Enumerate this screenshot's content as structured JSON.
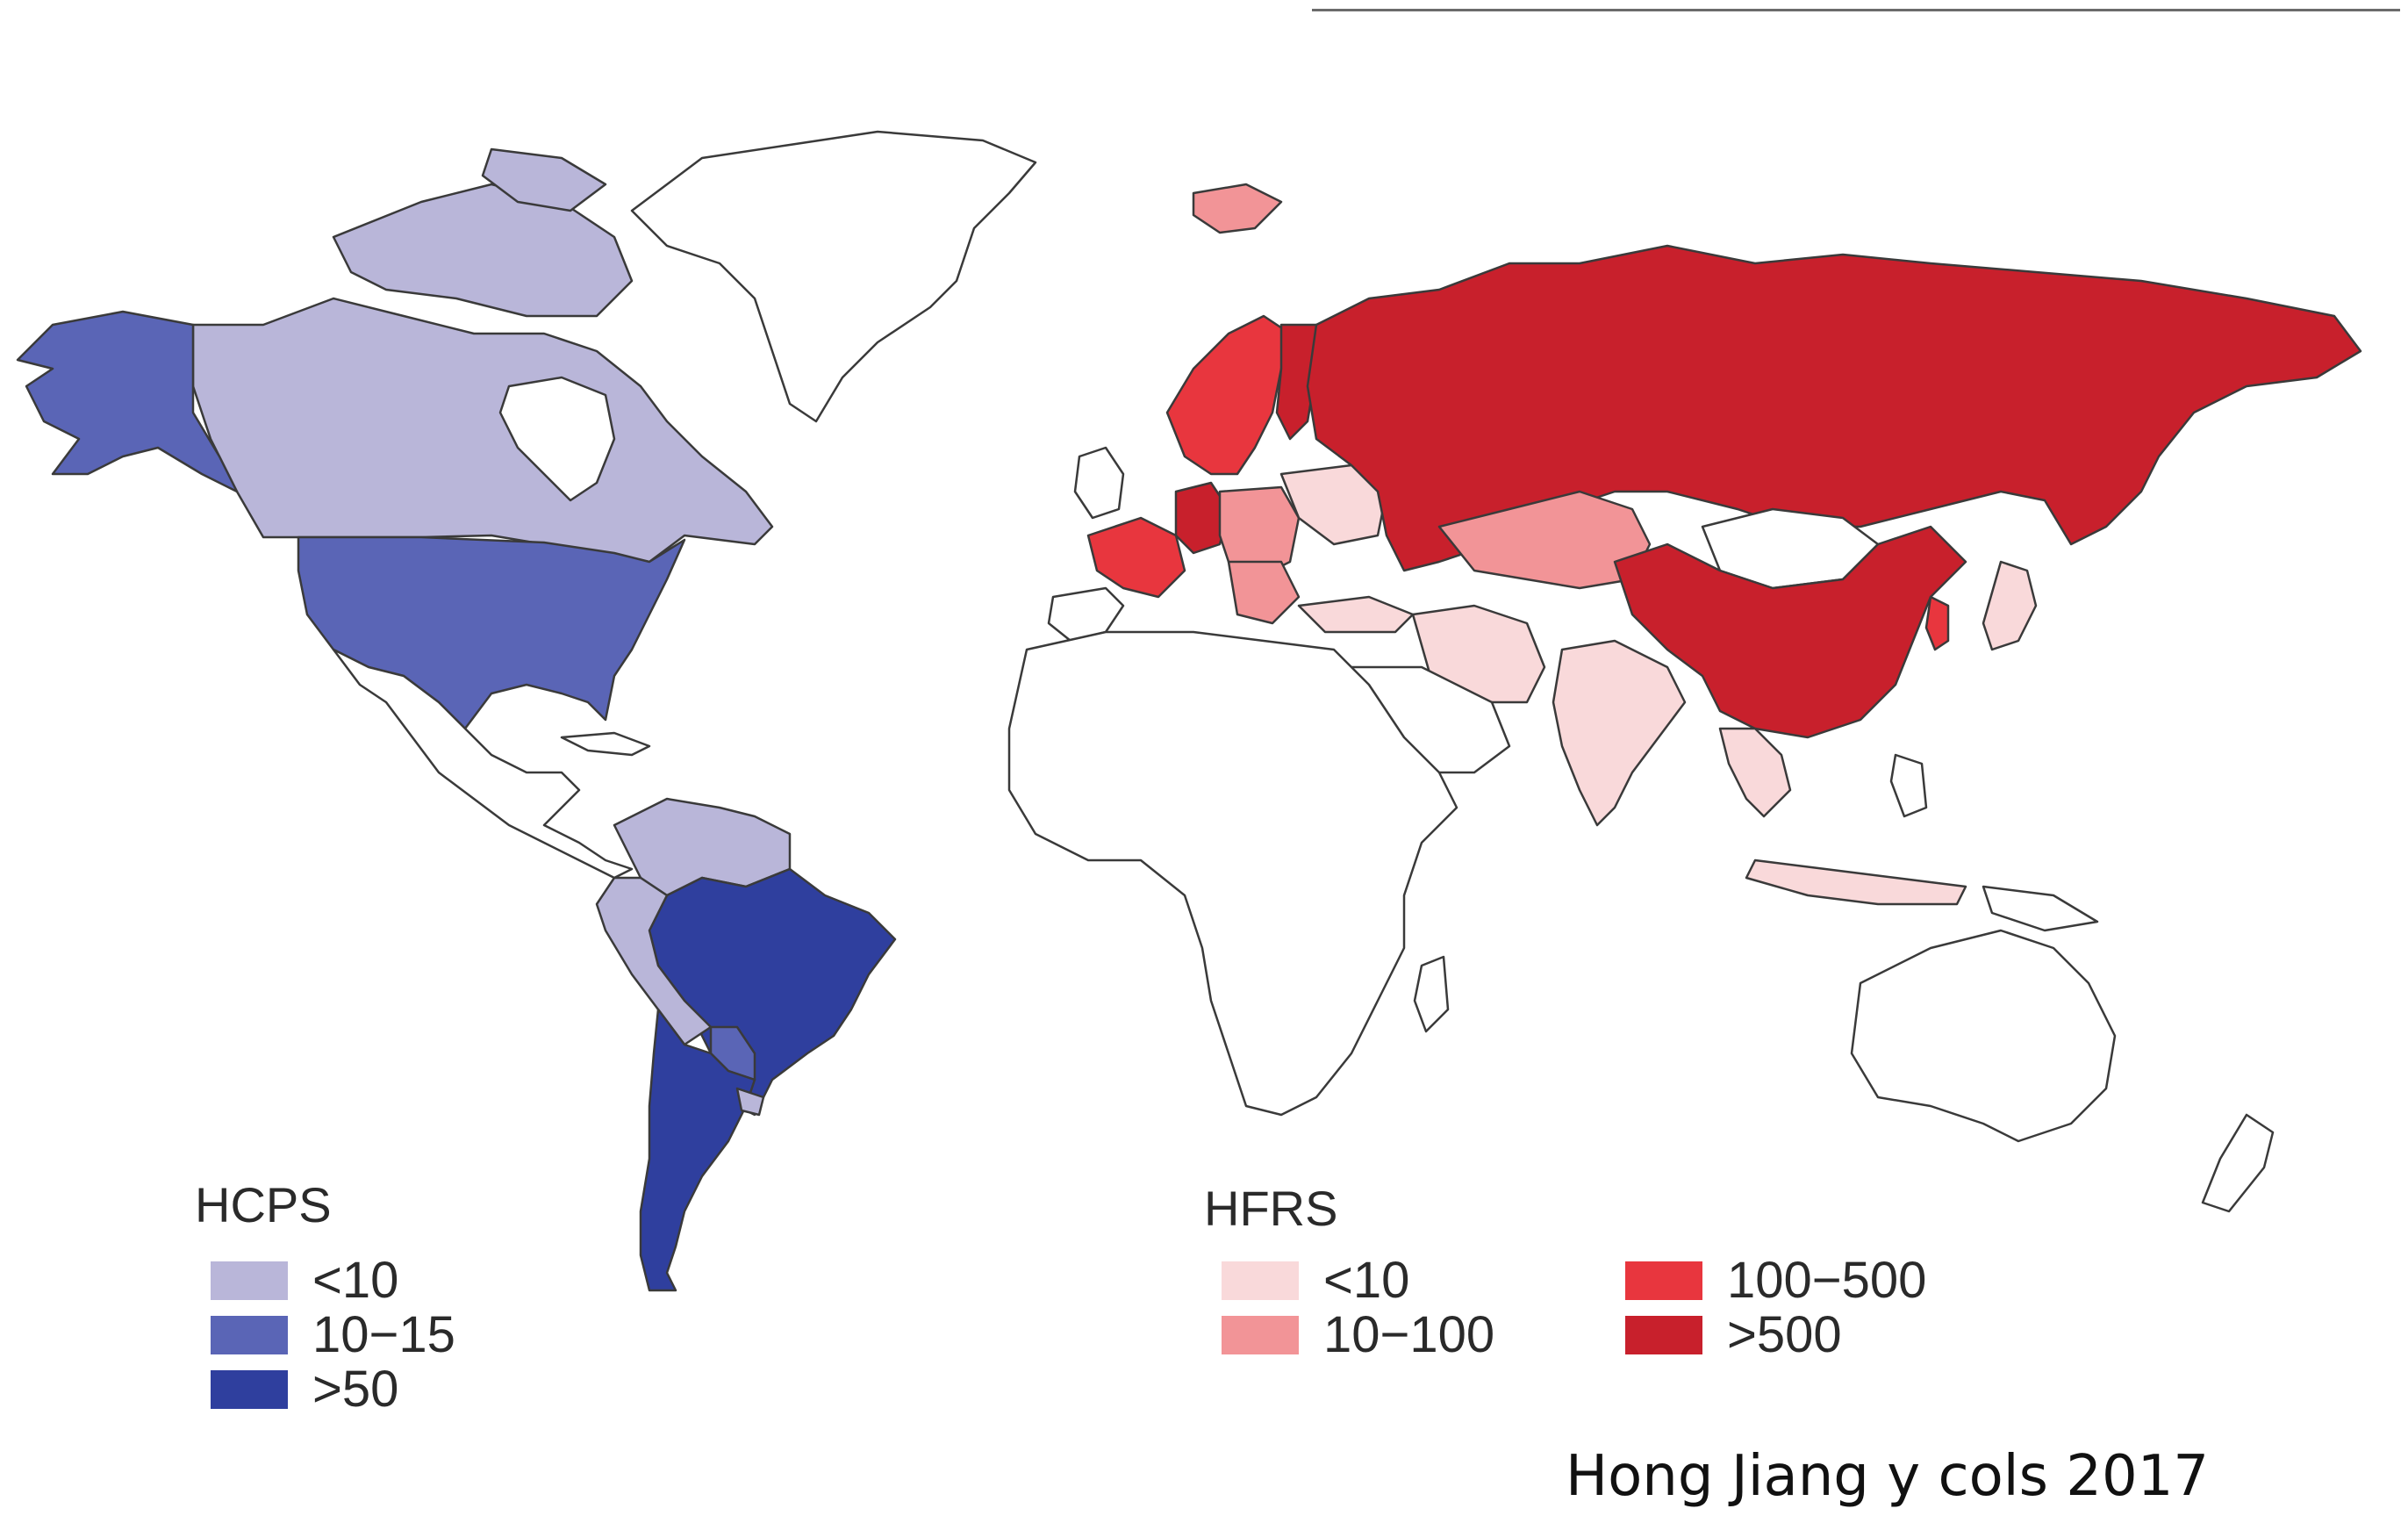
{
  "legend_hcps": {
    "title": "HCPS",
    "items": [
      {
        "label": "<10",
        "color": "#b9b6d9"
      },
      {
        "label": "10−15",
        "color": "#5a65b6"
      },
      {
        "label": ">50",
        "color": "#2f3f9e"
      }
    ]
  },
  "legend_hfrs": {
    "title": "HFRS",
    "items": [
      {
        "label": "<10",
        "color": "#f9d9da"
      },
      {
        "label": "10−100",
        "color": "#f29497"
      },
      {
        "label": "100−500",
        "color": "#e8363e"
      },
      {
        "label": ">500",
        "color": "#c8202c"
      }
    ]
  },
  "citation": "Hong Jiang y cols 2017",
  "colors": {
    "outline": "#3a3a3a",
    "land_default": "#ffffff"
  }
}
